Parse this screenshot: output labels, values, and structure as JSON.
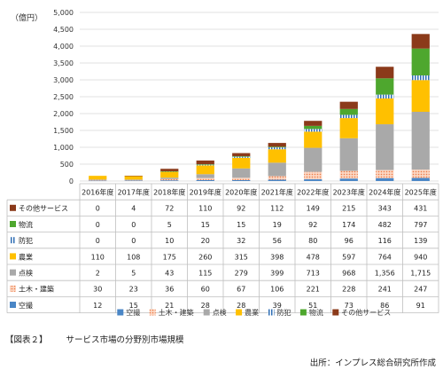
{
  "chart_data": {
    "type": "bar",
    "stacked": true,
    "y_unit": "（億円）",
    "ylim": [
      0,
      5000
    ],
    "yticks": [
      "0",
      "500",
      "1,000",
      "1,500",
      "2,000",
      "2,500",
      "3,000",
      "3,500",
      "4,000",
      "4,500",
      "5,000"
    ],
    "ytick_values": [
      0,
      500,
      1000,
      1500,
      2000,
      2500,
      3000,
      3500,
      4000,
      4500,
      5000
    ],
    "grid": true,
    "legend_position": "bottom",
    "categories": [
      "2016年度",
      "2017年度",
      "2018年度",
      "2019年度",
      "2020年度",
      "2021年度",
      "2022年度",
      "2023年度",
      "2024年度",
      "2025年度"
    ],
    "series": [
      {
        "name": "空撮",
        "color": "#4a86c6",
        "pattern": "solid",
        "values": [
          12,
          15,
          21,
          28,
          28,
          39,
          51,
          73,
          86,
          91
        ],
        "labels": [
          "12",
          "15",
          "21",
          "28",
          "28",
          "39",
          "51",
          "73",
          "86",
          "91"
        ]
      },
      {
        "name": "土木・建築",
        "color": "#f4a582",
        "pattern": "dots",
        "values": [
          30,
          23,
          36,
          60,
          67,
          106,
          221,
          228,
          241,
          247
        ],
        "labels": [
          "30",
          "23",
          "36",
          "60",
          "67",
          "106",
          "221",
          "228",
          "241",
          "247"
        ]
      },
      {
        "name": "点検",
        "color": "#a9a9a9",
        "pattern": "solid",
        "values": [
          2,
          5,
          43,
          115,
          279,
          399,
          713,
          968,
          1356,
          1715
        ],
        "labels": [
          "2",
          "5",
          "43",
          "115",
          "279",
          "399",
          "713",
          "968",
          "1,356",
          "1,715"
        ]
      },
      {
        "name": "農業",
        "color": "#ffc000",
        "pattern": "solid",
        "values": [
          110,
          108,
          175,
          260,
          315,
          398,
          478,
          597,
          764,
          940
        ],
        "labels": [
          "110",
          "108",
          "175",
          "260",
          "315",
          "398",
          "478",
          "597",
          "764",
          "940"
        ]
      },
      {
        "name": "防犯",
        "color": "#2e6db4",
        "pattern": "vstripes",
        "values": [
          0,
          0,
          10,
          20,
          32,
          56,
          80,
          96,
          116,
          139
        ],
        "labels": [
          "0",
          "0",
          "10",
          "20",
          "32",
          "56",
          "80",
          "96",
          "116",
          "139"
        ]
      },
      {
        "name": "物流",
        "color": "#4ea72e",
        "pattern": "solid",
        "values": [
          0,
          0,
          5,
          15,
          15,
          19,
          92,
          174,
          482,
          797
        ],
        "labels": [
          "0",
          "0",
          "5",
          "15",
          "15",
          "19",
          "92",
          "174",
          "482",
          "797"
        ]
      },
      {
        "name": "その他サービス",
        "color": "#8b3a1a",
        "pattern": "solid",
        "values": [
          0,
          4,
          72,
          110,
          92,
          112,
          149,
          215,
          343,
          431
        ],
        "labels": [
          "0",
          "4",
          "72",
          "110",
          "92",
          "112",
          "149",
          "215",
          "343",
          "431"
        ]
      }
    ],
    "table_row_order": [
      "その他サービス",
      "物流",
      "防犯",
      "農業",
      "点検",
      "土木・建築",
      "空撮"
    ]
  },
  "caption": {
    "number": "【図表２】",
    "text": "サービス市場の分野別市場規模"
  },
  "source": "出所：インプレス総合研究所作成"
}
